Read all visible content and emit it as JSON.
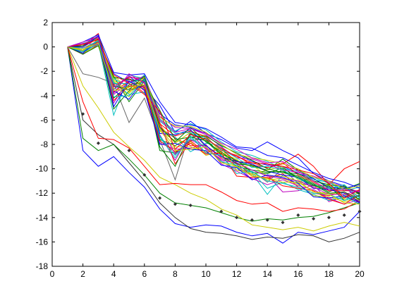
{
  "chart_data": {
    "type": "line",
    "title": "",
    "xlabel": "",
    "ylabel": "",
    "xlim": [
      0,
      20
    ],
    "ylim": [
      -18,
      2
    ],
    "x_ticks": [
      0,
      2,
      4,
      6,
      8,
      10,
      12,
      14,
      16,
      18,
      20
    ],
    "y_ticks": [
      2,
      0,
      -2,
      -4,
      -6,
      -8,
      -10,
      -12,
      -14,
      -16,
      -18
    ],
    "grid": false,
    "legend": "none",
    "x": [
      1,
      2,
      3,
      4,
      5,
      6,
      7,
      8,
      9,
      10,
      11,
      12,
      13,
      14,
      15,
      16,
      17,
      18,
      19,
      20
    ],
    "series": [
      {
        "color": "#0000ff",
        "values": [
          0,
          -8.5,
          -9.8,
          -9,
          -10.3,
          -11.5,
          -13.3,
          -14.5,
          -14.8,
          -14.6,
          -14.7,
          -15.2,
          -15.5,
          -15.3,
          -16.1,
          -15.2,
          -15.4,
          -15.1,
          -14.8,
          -13.5
        ]
      },
      {
        "color": "#333333",
        "values": [
          0,
          -6,
          -7.2,
          -8,
          -9.5,
          -11,
          -12.8,
          -14,
          -14.9,
          -15.2,
          -15.3,
          -15.5,
          -15.8,
          -15.6,
          -15.7,
          -15.4,
          -15.5,
          -16,
          -15.7,
          -15.2
        ]
      },
      {
        "color": "#008000",
        "values": [
          0,
          -7.5,
          -8.5,
          -8,
          -9.2,
          -10.5,
          -12,
          -12.8,
          -13,
          -13.2,
          -13.6,
          -14,
          -14.3,
          -14.1,
          -14.2,
          -14,
          -13.9,
          -13.6,
          -13.2,
          -12.8
        ]
      },
      {
        "color": "#cccc00",
        "values": [
          0,
          -3.2,
          -5,
          -7,
          -8.2,
          -9.3,
          -10.7,
          -11.3,
          -12,
          -12.5,
          -13.3,
          -13.8,
          -14.6,
          -14.8,
          -15,
          -14.8,
          -15.1,
          -14.7,
          -14.4,
          -14.7
        ]
      },
      {
        "color": "#ff0000",
        "values": [
          0,
          -4.5,
          -7.5,
          -7.6,
          -8.3,
          -9.8,
          -11.3,
          -11.2,
          -11.3,
          -11.3,
          -11.9,
          -12.6,
          -12.9,
          -12.8,
          -13.5,
          -13.2,
          -13.3,
          -13.5,
          -13.3,
          -12.6
        ]
      },
      {
        "color": "#666666",
        "values": [
          0,
          -2.2,
          -2.5,
          -3,
          -6.2,
          -4.2,
          -7.6,
          -10.9,
          -6.8,
          -8.2,
          -9.4,
          -10.1,
          -10.2,
          -11.1,
          -10,
          -11.2,
          -11.4,
          -11.7,
          -11.6,
          -12.3
        ]
      },
      {
        "color": "#0000ff",
        "values": [
          0,
          -0.6,
          0.7,
          -3.5,
          -2.4,
          -3.4,
          -4.8,
          -7,
          -6.1,
          -7.1,
          -7.6,
          -8.3,
          -8.5,
          -7.8,
          -8.5,
          -9.1,
          -10.4,
          -11,
          -11.4,
          -12.6
        ]
      },
      {
        "color": "#008000",
        "values": [
          0,
          -0.3,
          0.4,
          -2.4,
          -4.5,
          -2.8,
          -8.5,
          -8.7,
          -7.7,
          -7.5,
          -8.4,
          -9.4,
          -9.8,
          -10.1,
          -9.2,
          -10.1,
          -10.8,
          -11.6,
          -11.7,
          -11.2
        ]
      },
      {
        "color": "#ff0000",
        "values": [
          0,
          0.1,
          1.1,
          -3.1,
          -2.6,
          -3.2,
          -6.6,
          -7.5,
          -8.1,
          -8.1,
          -9.1,
          -9.4,
          -9.5,
          -9.9,
          -9.6,
          -8.8,
          -9.8,
          -11.3,
          -10,
          -9.4
        ]
      },
      {
        "color": "#00bfbf",
        "values": [
          0,
          -0.5,
          0.3,
          -5.6,
          -2.3,
          -2.6,
          -6.8,
          -7.4,
          -8.6,
          -7.9,
          -8.1,
          -9.9,
          -10.4,
          -12.1,
          -10.5,
          -11.1,
          -10.7,
          -11.2,
          -12.2,
          -12.3
        ]
      },
      {
        "color": "#bf00bf",
        "values": [
          0,
          -0.4,
          0.3,
          -3.2,
          -3.5,
          -3.2,
          -7.2,
          -9.3,
          -7.1,
          -8.4,
          -9.2,
          -9.6,
          -10.9,
          -10.5,
          -11.9,
          -11.8,
          -11.3,
          -12.7,
          -12.3,
          -12.2
        ]
      },
      {
        "color": "#cccc00",
        "values": [
          0,
          0.1,
          0.8,
          -2.8,
          -4.1,
          -2.5,
          -6.4,
          -7.9,
          -7,
          -7.3,
          -8.7,
          -9.2,
          -10.5,
          -10.1,
          -9.8,
          -10.9,
          -11.6,
          -11.3,
          -12.5,
          -11.9
        ]
      },
      {
        "color": "#0000ff",
        "values": [
          0,
          -0.3,
          0.5,
          -2.2,
          -2.9,
          -2.5,
          -5.5,
          -6.4,
          -6.6,
          -7.1,
          -8,
          -8.8,
          -9.4,
          -9.7,
          -9.8,
          -10.4,
          -10.8,
          -11.5,
          -11.6,
          -11.3
        ]
      },
      {
        "color": "#008000",
        "values": [
          0,
          0.2,
          0.9,
          -4.2,
          -3.1,
          -2.9,
          -7.6,
          -8.1,
          -7.4,
          -7.7,
          -8.9,
          -9.8,
          -10.1,
          -10.3,
          -10.2,
          -10.6,
          -11.2,
          -11.9,
          -11.4,
          -12.1
        ]
      },
      {
        "color": "#ff0000",
        "values": [
          0,
          -0.6,
          0.2,
          -3.7,
          -2.8,
          -3.8,
          -6.2,
          -9.6,
          -7.7,
          -8.7,
          -8.3,
          -9.5,
          -10.6,
          -10.8,
          -10.4,
          -11.5,
          -12,
          -12.2,
          -11.9,
          -12.8
        ]
      },
      {
        "color": "#00bfbf",
        "values": [
          0,
          0.3,
          0.6,
          -2.6,
          -3.3,
          -2.3,
          -5.9,
          -6.9,
          -6.3,
          -6.8,
          -7.8,
          -8.6,
          -8.9,
          -9.4,
          -10,
          -10.2,
          -10.9,
          -11.1,
          -11.8,
          -11.5
        ]
      },
      {
        "color": "#bf00bf",
        "values": [
          0,
          -0.2,
          0.4,
          -4.6,
          -2.6,
          -3.6,
          -7.9,
          -8.4,
          -8.3,
          -8,
          -9.6,
          -10.2,
          -10.8,
          -11.3,
          -10.9,
          -11.4,
          -11.7,
          -12.4,
          -12.9,
          -12.5
        ]
      },
      {
        "color": "#cccc00",
        "values": [
          0,
          -0.5,
          0.1,
          -3.4,
          -3.8,
          -2.7,
          -6.9,
          -7.7,
          -7.8,
          -8.9,
          -8.6,
          -9.9,
          -9.7,
          -10.6,
          -10.6,
          -11,
          -11.9,
          -12,
          -12.1,
          -12.6
        ]
      },
      {
        "color": "#0000ff",
        "values": [
          0,
          0.4,
          1,
          -2.1,
          -2.3,
          -2.2,
          -4.5,
          -6.2,
          -6.4,
          -6.7,
          -7.4,
          -8.2,
          -8.3,
          -8.9,
          -9.1,
          -9.7,
          -10.3,
          -10.8,
          -11.1,
          -11.6
        ]
      },
      {
        "color": "#008000",
        "values": [
          0,
          -0.4,
          0.5,
          -5.1,
          -3.6,
          -3.1,
          -8.2,
          -9.8,
          -7.1,
          -7.6,
          -8.8,
          -9.3,
          -10.3,
          -10.4,
          -9.9,
          -10.8,
          -11.4,
          -11.4,
          -12.6,
          -12.2
        ]
      },
      {
        "color": "#ff0000",
        "values": [
          0,
          0,
          0.7,
          -3.3,
          -2.5,
          -2.6,
          -6.3,
          -7.3,
          -6.9,
          -7.4,
          -8.5,
          -8.9,
          -9.7,
          -9.9,
          -9.5,
          -10.5,
          -11.1,
          -11.8,
          -11.8,
          -11.8
        ]
      },
      {
        "color": "#00bfbf",
        "values": [
          0,
          -0.3,
          0.2,
          -2.9,
          -3.9,
          -3.7,
          -7.3,
          -8.9,
          -7.5,
          -8.2,
          -9.4,
          -9.7,
          -10.3,
          -11.6,
          -11.1,
          -11.7,
          -12.1,
          -12.6,
          -12.3,
          -12.9
        ]
      },
      {
        "color": "#bf00bf",
        "values": [
          0,
          0.2,
          0.9,
          -3.9,
          -2.9,
          -2.4,
          -5.7,
          -6.6,
          -6.7,
          -7.2,
          -8.2,
          -9.1,
          -9.2,
          -9.6,
          -10.1,
          -10.3,
          -10.6,
          -11.1,
          -11.5,
          -11.9
        ]
      },
      {
        "color": "#cccc00",
        "values": [
          0,
          -0.2,
          0.3,
          -2.4,
          -3.4,
          -3.4,
          -6.7,
          -8.2,
          -8.2,
          -8.6,
          -8.3,
          -10.1,
          -10.4,
          -10.9,
          -10.8,
          -11.3,
          -12.2,
          -12.3,
          -12.7,
          -12.4
        ]
      },
      {
        "color": "#0000ff",
        "values": [
          0,
          -0.5,
          0.6,
          -3.6,
          -4.3,
          -2.6,
          -7.1,
          -7.2,
          -6.8,
          -8.1,
          -9,
          -9.4,
          -9.6,
          -10.2,
          -10.5,
          -10.7,
          -11.6,
          -11.7,
          -12,
          -12.7
        ]
      },
      {
        "color": "#008000",
        "values": [
          0,
          0.1,
          0.8,
          -2.5,
          -2.7,
          -2.8,
          -5.2,
          -7.6,
          -7.4,
          -7.3,
          -8.1,
          -8.7,
          -9.3,
          -10,
          -10.3,
          -10.4,
          -11,
          -11.3,
          -11.5,
          -12
        ]
      },
      {
        "color": "#ff0000",
        "values": [
          0,
          -0.1,
          0.4,
          -4.4,
          -3.2,
          -3.3,
          -7.7,
          -8.6,
          -7.9,
          -8.8,
          -8.7,
          -10.6,
          -10.7,
          -10.7,
          -11.4,
          -11.6,
          -11.8,
          -12.5,
          -12.9,
          -12.1
        ]
      },
      {
        "color": "#00bfbf",
        "values": [
          0,
          -0.4,
          0.5,
          -3,
          -3,
          -2.5,
          -6.1,
          -7.1,
          -7,
          -7.5,
          -8.4,
          -9.1,
          -9.9,
          -9.8,
          -10.1,
          -10.8,
          -11.3,
          -11.6,
          -11.3,
          -12.4
        ]
      },
      {
        "color": "#bf00bf",
        "values": [
          0,
          0.3,
          0.2,
          -3.8,
          -2.2,
          -3,
          -6.5,
          -8.8,
          -7.6,
          -8.3,
          -9.3,
          -9.5,
          -10.1,
          -10.6,
          -10.8,
          -11,
          -11.5,
          -12.1,
          -12.1,
          -11.8
        ]
      },
      {
        "color": "#cccc00",
        "values": [
          0,
          -0.3,
          0.6,
          -2.7,
          -3.7,
          -2.5,
          -5.8,
          -6.5,
          -6.5,
          -7,
          -8,
          -8.8,
          -9.1,
          -9.3,
          -9.6,
          -10,
          -10.7,
          -11,
          -11.7,
          -11.4
        ]
      },
      {
        "color": "#0000ff",
        "values": [
          0,
          0,
          0.9,
          -4.9,
          -2.8,
          -3.5,
          -8,
          -7.9,
          -8.4,
          -8.5,
          -9.7,
          -9.9,
          -10.9,
          -10.5,
          -10.7,
          -11.2,
          -12.3,
          -12.4,
          -12.2,
          -12.8
        ]
      },
      {
        "color": "#008000",
        "values": [
          0,
          -0.6,
          0.1,
          -3.2,
          -3.5,
          -2.4,
          -6.6,
          -7.8,
          -6.6,
          -7.8,
          -8.6,
          -9.6,
          -9.7,
          -10.2,
          -10.3,
          -10.7,
          -11.3,
          -12,
          -11.9,
          -12.5
        ]
      },
      {
        "color": "#ff0000",
        "values": [
          0,
          0.2,
          0.6,
          -2.3,
          -3,
          -3.9,
          -5.3,
          -8.4,
          -7.2,
          -7.6,
          -8.3,
          -9,
          -9.5,
          -9.6,
          -9.8,
          -10.1,
          -10.4,
          -11.2,
          -12.4,
          -11.7
        ]
      },
      {
        "color": "#00bfbf",
        "values": [
          0,
          -0.1,
          0.5,
          -4.1,
          -4,
          -2.7,
          -7.4,
          -9.1,
          -7.3,
          -8.7,
          -8.9,
          -10.4,
          -10.2,
          -11,
          -11.2,
          -11.5,
          -12,
          -12.1,
          -12.6,
          -12.1
        ]
      },
      {
        "color": "#bf00bf",
        "values": [
          0,
          0.4,
          0.8,
          -3.3,
          -2.4,
          -2.9,
          -6,
          -7,
          -6.7,
          -7.1,
          -7.9,
          -8.4,
          -9.1,
          -9.5,
          -9.4,
          -10.2,
          -11,
          -11.7,
          -11.7,
          -11.9
        ]
      },
      {
        "color": "#cccc00",
        "values": [
          0,
          -0.2,
          0.3,
          -3.6,
          -3.3,
          -3.1,
          -6.8,
          -8.5,
          -8.4,
          -8.2,
          -9.5,
          -9.8,
          -10.6,
          -10.8,
          -11.1,
          -11.1,
          -11.9,
          -12.1,
          -12.8,
          -12.9
        ]
      }
    ],
    "marked_series": {
      "color": "#333333",
      "x": [
        2,
        3,
        5,
        6,
        7,
        8,
        9,
        11,
        12,
        13,
        14,
        15,
        16,
        17,
        18,
        19,
        20
      ],
      "values": [
        -5.5,
        -7.9,
        -8.5,
        -10.5,
        -12.4,
        -12.9,
        -13,
        -13.5,
        -14,
        -14.2,
        -14.2,
        -14.4,
        -13.8,
        -14.1,
        -14,
        -13.8,
        -13.5
      ]
    }
  }
}
